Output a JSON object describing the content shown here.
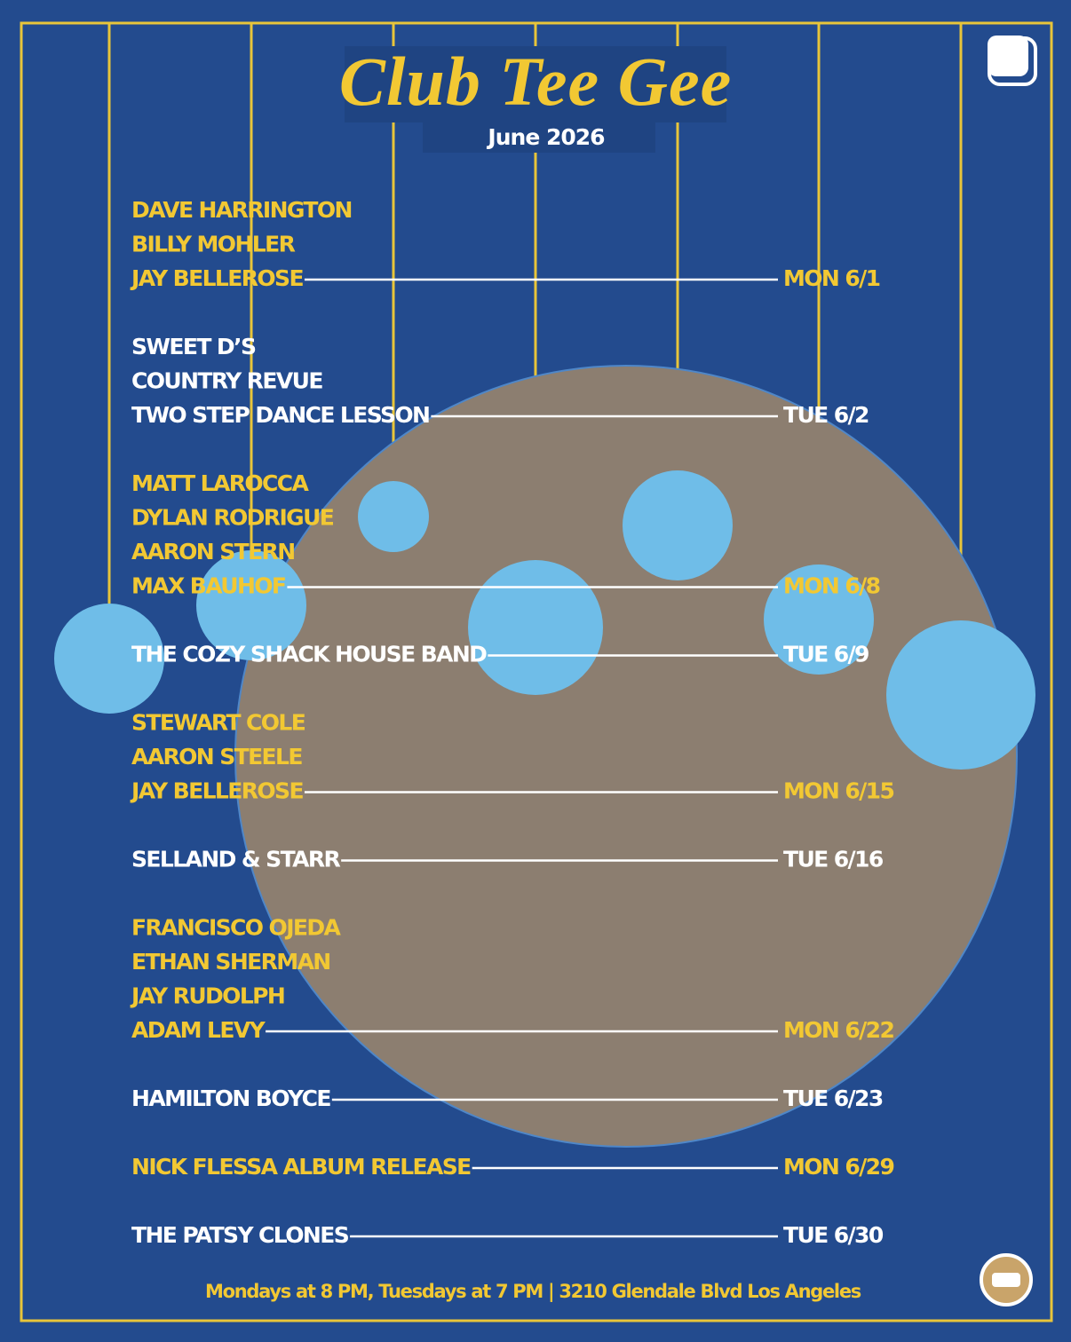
{
  "header": {
    "title": "Club Tee Gee",
    "subtitle": "June 2026"
  },
  "events": [
    {
      "lines": [
        "DAVE HARRINGTON",
        "BILLY MOHLER",
        "JAY BELLEROSE"
      ],
      "date": "MON 6/1"
    },
    {
      "lines": [
        "SWEET D’S",
        "COUNTRY REVUE",
        "TWO STEP DANCE LESSON"
      ],
      "date": "TUE 6/2"
    },
    {
      "lines": [
        "MATT LAROCCA",
        "DYLAN RODRIGUE",
        "AARON STERN",
        "MAX BAUHOF"
      ],
      "date": "MON 6/8"
    },
    {
      "lines": [
        "THE COZY SHACK HOUSE BAND"
      ],
      "date": "TUE 6/9"
    },
    {
      "lines": [
        "STEWART COLE",
        "AARON STEELE",
        "JAY BELLEROSE"
      ],
      "date": "MON 6/15"
    },
    {
      "lines": [
        "SELLAND & STARR"
      ],
      "date": "TUE 6/16"
    },
    {
      "lines": [
        "FRANCISCO OJEDA",
        "ETHAN SHERMAN",
        "JAY RUDOLPH",
        "ADAM LEVY"
      ],
      "date": "MON 6/22"
    },
    {
      "lines": [
        "HAMILTON BOYCE"
      ],
      "date": "TUE 6/23"
    },
    {
      "lines": [
        "NICK FLESSA ALBUM RELEASE"
      ],
      "date": "MON 6/29"
    },
    {
      "lines": [
        "THE PATSY CLONES"
      ],
      "date": "TUE 6/30"
    }
  ],
  "footer": "Mondays at 8 PM, Tuesdays at 7 PM | 3210 Glendale Blvd Los Angeles"
}
